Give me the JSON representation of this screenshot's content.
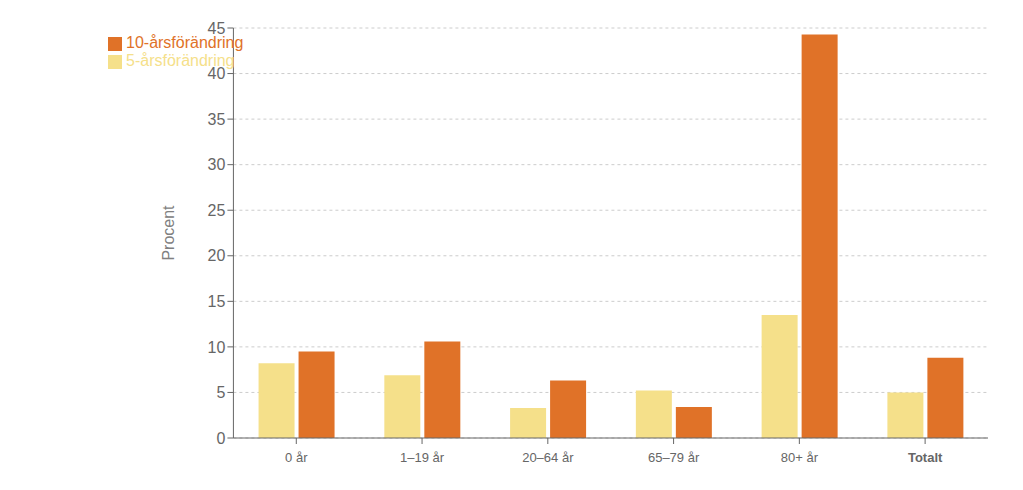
{
  "chart_data": {
    "type": "bar",
    "categories": [
      "0 år",
      "1–19 år",
      "20–64 år",
      "65–79 år",
      "80+ år",
      "Totalt"
    ],
    "series": [
      {
        "name": "5-årsförändring",
        "color": "#F5E08A",
        "values": [
          8.2,
          6.9,
          3.3,
          5.2,
          13.5,
          5.0
        ]
      },
      {
        "name": "10-årsförändring",
        "color": "#E07228",
        "values": [
          9.5,
          10.6,
          6.3,
          3.4,
          44.3,
          8.8
        ]
      }
    ],
    "ylabel": "Procent",
    "ylim": [
      0,
      45
    ],
    "yticks": [
      0,
      5,
      10,
      15,
      20,
      25,
      30,
      35,
      40,
      45
    ],
    "grid": true,
    "legend": "upper left"
  }
}
